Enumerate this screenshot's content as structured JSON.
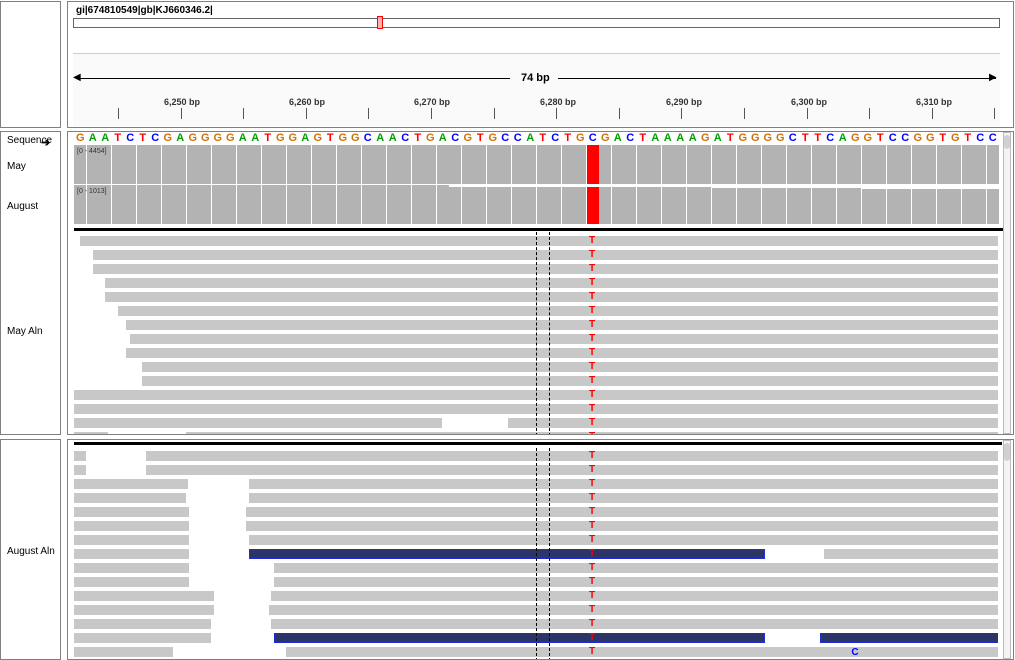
{
  "locus": {
    "name": "gi|674810549|gb|KJ660346.2|"
  },
  "ruler": {
    "span_label": "74 bp",
    "ticks": [
      "6,250 bp",
      "6,260 bp",
      "6,270 bp",
      "6,280 bp",
      "6,290 bp",
      "6,300 bp",
      "6,310 bp"
    ]
  },
  "tracks": {
    "sequence": "Sequence",
    "may": "May",
    "august": "August",
    "may_aln": "May Aln",
    "august_aln": "August Aln"
  },
  "coverage": {
    "may_range": "[0 - 4454]",
    "august_range": "[0 - 1013]"
  },
  "sequence_bases": "GAATCTCGAGGGGAATGGAGTGGCAACTGACGTGCCATCTGCGACTAAAAGATGGGGCTTCAGGTCCGGTGTCC",
  "mismatch": {
    "base": "T",
    "alt_base": "C"
  },
  "colors": {
    "A": "#00a000",
    "C": "#0000ff",
    "G": "#d17105",
    "T": "#ff0000",
    "read": "#c8c8c8",
    "pair": "#2d3467"
  }
}
